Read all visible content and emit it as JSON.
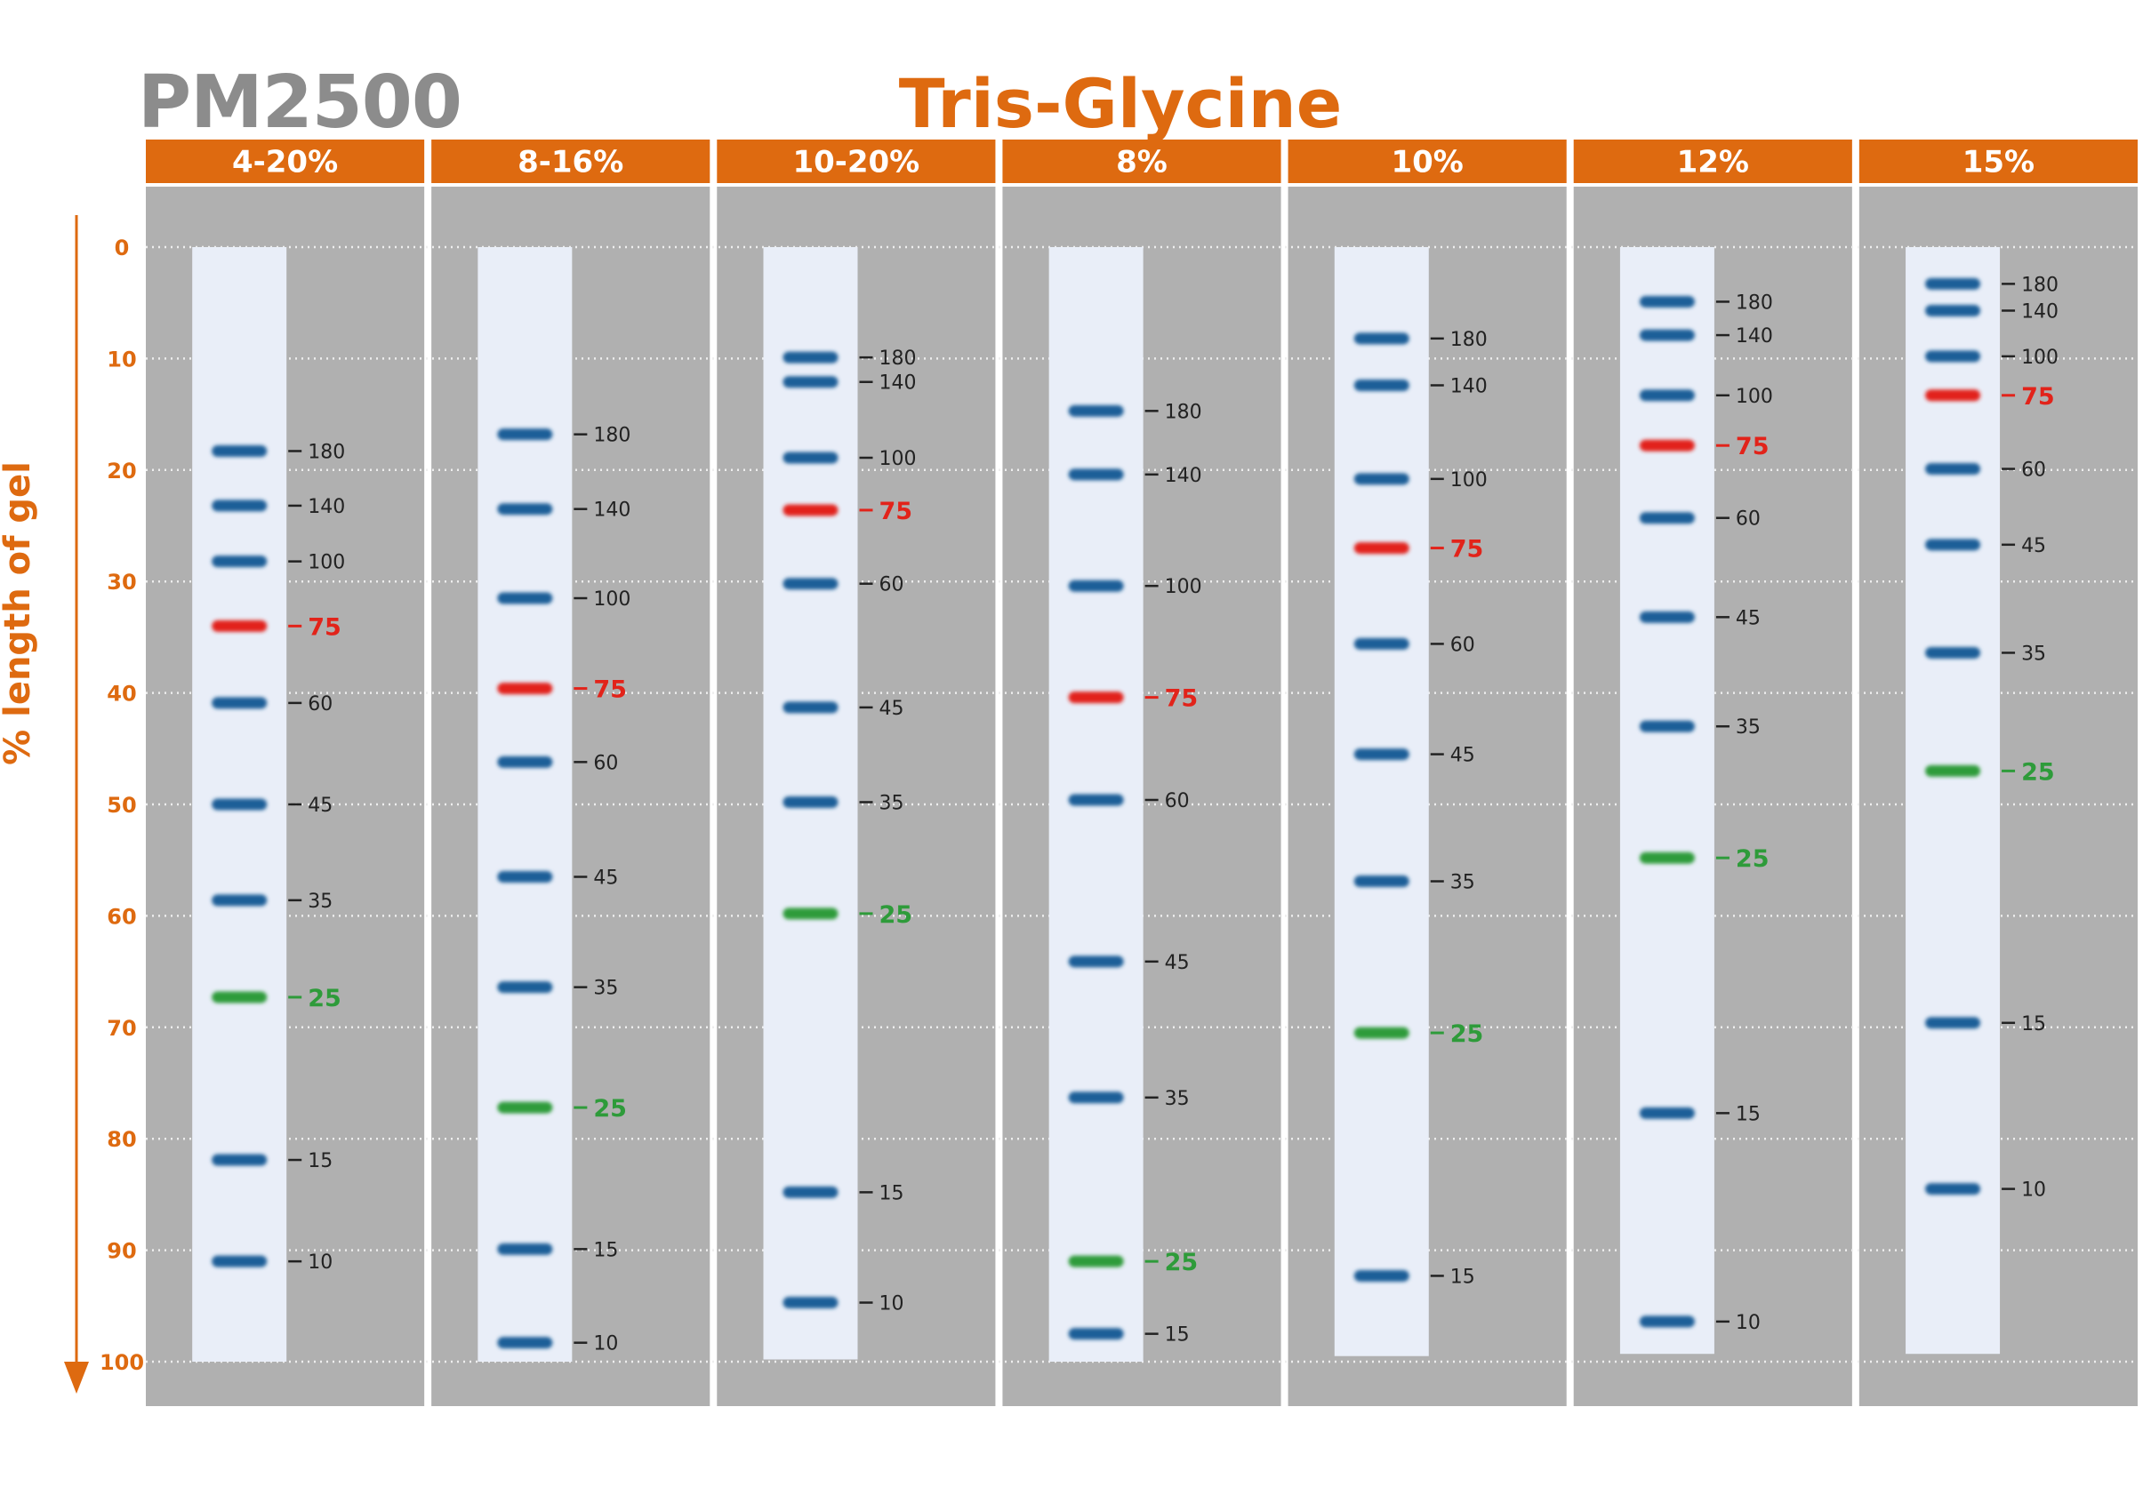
{
  "header": {
    "product_name": "PM2500",
    "title": "Tris-Glycine"
  },
  "colors": {
    "accent_orange": "#de6a10",
    "product_gray": "#8c8c8c",
    "panel_gray": "#b0b0b0",
    "lane_bg": "#e9eef8",
    "band_blue": "#1f5e98",
    "band_red": "#e2231a",
    "band_green": "#2e9b3a"
  },
  "chart_data": {
    "type": "gel-ladder",
    "title": "Tris-Glycine",
    "ylabel": "% length of gel",
    "ylim": [
      0,
      100
    ],
    "yticks": [
      0,
      10,
      20,
      30,
      40,
      50,
      60,
      70,
      80,
      90,
      100
    ],
    "lanes": [
      {
        "name": "4-20%",
        "lane_range": [
          0,
          100
        ],
        "bands": [
          {
            "label": "180",
            "pos": 18.3,
            "color": "blue"
          },
          {
            "label": "140",
            "pos": 23.2,
            "color": "blue"
          },
          {
            "label": "100",
            "pos": 28.2,
            "color": "blue"
          },
          {
            "label": "75",
            "pos": 34.0,
            "color": "red"
          },
          {
            "label": "60",
            "pos": 40.9,
            "color": "blue"
          },
          {
            "label": "45",
            "pos": 50.0,
            "color": "blue"
          },
          {
            "label": "35",
            "pos": 58.6,
            "color": "blue"
          },
          {
            "label": "25",
            "pos": 67.3,
            "color": "green"
          },
          {
            "label": "15",
            "pos": 81.9,
            "color": "blue"
          },
          {
            "label": "10",
            "pos": 91.0,
            "color": "blue"
          }
        ]
      },
      {
        "name": "8-16%",
        "lane_range": [
          0,
          100
        ],
        "bands": [
          {
            "label": "180",
            "pos": 16.8,
            "color": "blue"
          },
          {
            "label": "140",
            "pos": 23.5,
            "color": "blue"
          },
          {
            "label": "100",
            "pos": 31.5,
            "color": "blue"
          },
          {
            "label": "75",
            "pos": 39.6,
            "color": "red"
          },
          {
            "label": "60",
            "pos": 46.2,
            "color": "blue"
          },
          {
            "label": "45",
            "pos": 56.5,
            "color": "blue"
          },
          {
            "label": "35",
            "pos": 66.4,
            "color": "blue"
          },
          {
            "label": "25",
            "pos": 77.2,
            "color": "green"
          },
          {
            "label": "15",
            "pos": 89.9,
            "color": "blue"
          },
          {
            "label": "10",
            "pos": 98.3,
            "color": "blue"
          }
        ]
      },
      {
        "name": "10-20%",
        "lane_range": [
          0,
          99.8
        ],
        "bands": [
          {
            "label": "180",
            "pos": 9.9,
            "color": "blue"
          },
          {
            "label": "140",
            "pos": 12.1,
            "color": "blue"
          },
          {
            "label": "100",
            "pos": 18.9,
            "color": "blue"
          },
          {
            "label": "75",
            "pos": 23.6,
            "color": "red"
          },
          {
            "label": "60",
            "pos": 30.2,
            "color": "blue"
          },
          {
            "label": "45",
            "pos": 41.3,
            "color": "blue"
          },
          {
            "label": "35",
            "pos": 49.8,
            "color": "blue"
          },
          {
            "label": "25",
            "pos": 59.8,
            "color": "green"
          },
          {
            "label": "15",
            "pos": 84.8,
            "color": "blue"
          },
          {
            "label": "10",
            "pos": 94.7,
            "color": "blue"
          }
        ]
      },
      {
        "name": "8%",
        "lane_range": [
          0,
          100
        ],
        "bands": [
          {
            "label": "180",
            "pos": 14.7,
            "color": "blue"
          },
          {
            "label": "140",
            "pos": 20.4,
            "color": "blue"
          },
          {
            "label": "100",
            "pos": 30.4,
            "color": "blue"
          },
          {
            "label": "75",
            "pos": 40.4,
            "color": "red"
          },
          {
            "label": "60",
            "pos": 49.6,
            "color": "blue"
          },
          {
            "label": "45",
            "pos": 64.1,
            "color": "blue"
          },
          {
            "label": "35",
            "pos": 76.3,
            "color": "blue"
          },
          {
            "label": "25",
            "pos": 91.0,
            "color": "green"
          },
          {
            "label": "15",
            "pos": 97.5,
            "color": "blue"
          }
        ]
      },
      {
        "name": "10%",
        "lane_range": [
          0,
          99.5
        ],
        "bands": [
          {
            "label": "180",
            "pos": 8.2,
            "color": "blue"
          },
          {
            "label": "140",
            "pos": 12.4,
            "color": "blue"
          },
          {
            "label": "100",
            "pos": 20.8,
            "color": "blue"
          },
          {
            "label": "75",
            "pos": 27.0,
            "color": "red"
          },
          {
            "label": "60",
            "pos": 35.6,
            "color": "blue"
          },
          {
            "label": "45",
            "pos": 45.5,
            "color": "blue"
          },
          {
            "label": "35",
            "pos": 56.9,
            "color": "blue"
          },
          {
            "label": "25",
            "pos": 70.5,
            "color": "green"
          },
          {
            "label": "15",
            "pos": 92.3,
            "color": "blue"
          }
        ]
      },
      {
        "name": "12%",
        "lane_range": [
          0,
          99.3
        ],
        "bands": [
          {
            "label": "180",
            "pos": 4.9,
            "color": "blue"
          },
          {
            "label": "140",
            "pos": 7.9,
            "color": "blue"
          },
          {
            "label": "100",
            "pos": 13.3,
            "color": "blue"
          },
          {
            "label": "75",
            "pos": 17.8,
            "color": "red"
          },
          {
            "label": "60",
            "pos": 24.3,
            "color": "blue"
          },
          {
            "label": "45",
            "pos": 33.2,
            "color": "blue"
          },
          {
            "label": "35",
            "pos": 43.0,
            "color": "blue"
          },
          {
            "label": "25",
            "pos": 54.8,
            "color": "green"
          },
          {
            "label": "15",
            "pos": 77.7,
            "color": "blue"
          },
          {
            "label": "10",
            "pos": 96.4,
            "color": "blue"
          }
        ]
      },
      {
        "name": "15%",
        "lane_range": [
          0,
          99.3
        ],
        "bands": [
          {
            "label": "180",
            "pos": 3.3,
            "color": "blue"
          },
          {
            "label": "140",
            "pos": 5.7,
            "color": "blue"
          },
          {
            "label": "100",
            "pos": 9.8,
            "color": "blue"
          },
          {
            "label": "75",
            "pos": 13.3,
            "color": "red"
          },
          {
            "label": "60",
            "pos": 19.9,
            "color": "blue"
          },
          {
            "label": "45",
            "pos": 26.7,
            "color": "blue"
          },
          {
            "label": "35",
            "pos": 36.4,
            "color": "blue"
          },
          {
            "label": "25",
            "pos": 47.0,
            "color": "green"
          },
          {
            "label": "15",
            "pos": 69.6,
            "color": "blue"
          },
          {
            "label": "10",
            "pos": 84.5,
            "color": "blue"
          }
        ]
      }
    ]
  }
}
